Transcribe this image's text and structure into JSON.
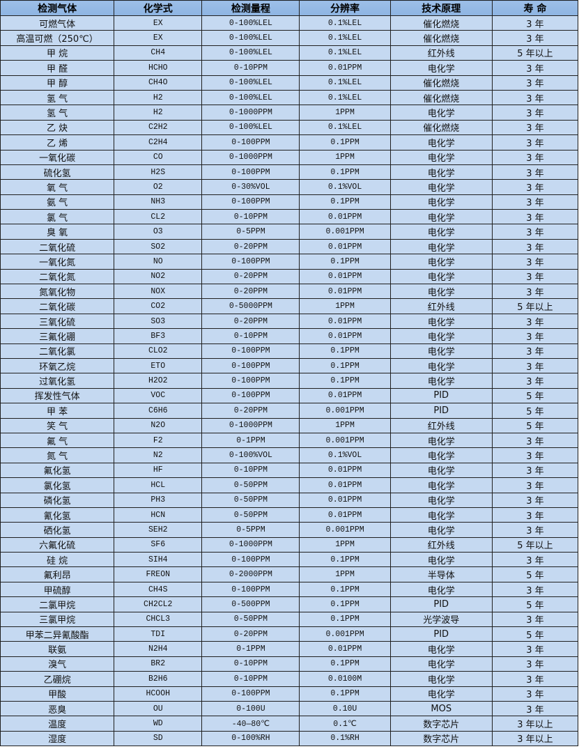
{
  "header": {
    "colors": {
      "header_bg": "#8db4e2",
      "row_bg": "#c5d9f1"
    },
    "columns": [
      "检测气体",
      "化学式",
      "检测量程",
      "分辨率",
      "技术原理",
      "寿  命"
    ]
  },
  "rows": [
    [
      "可燃气体",
      "EX",
      "0-100%LEL",
      "0.1%LEL",
      "催化燃烧",
      "3 年"
    ],
    [
      "高温可燃（250℃）",
      "EX",
      "0-100%LEL",
      "0.1%LEL",
      "催化燃烧",
      "3 年"
    ],
    [
      "甲 烷",
      "CH4",
      "0-100%LEL",
      "0.1%LEL",
      "红外线",
      "5 年以上"
    ],
    [
      "甲 醛",
      "HCHO",
      "0-10PPM",
      "0.01PPM",
      "电化学",
      "3 年"
    ],
    [
      "甲 醇",
      "CH4O",
      "0-100%LEL",
      "0.1%LEL",
      "催化燃烧",
      "3 年"
    ],
    [
      "氢 气",
      "H2",
      "0-100%LEL",
      "0.1%LEL",
      "催化燃烧",
      "3 年"
    ],
    [
      "氢 气",
      "H2",
      "0-1000PPM",
      "1PPM",
      "电化学",
      "3 年"
    ],
    [
      "乙 炔",
      "C2H2",
      "0-100%LEL",
      "0.1%LEL",
      "催化燃烧",
      "3 年"
    ],
    [
      "乙 烯",
      "C2H4",
      "0-100PPM",
      "0.1PPM",
      "电化学",
      "3 年"
    ],
    [
      "一氧化碳",
      "CO",
      "0-1000PPM",
      "1PPM",
      "电化学",
      "3 年"
    ],
    [
      "硫化氢",
      "H2S",
      "0-100PPM",
      "0.1PPM",
      "电化学",
      "3 年"
    ],
    [
      "氧 气",
      "O2",
      "0-30%VOL",
      "0.1%VOL",
      "电化学",
      "3 年"
    ],
    [
      "氨 气",
      "NH3",
      "0-100PPM",
      "0.1PPM",
      "电化学",
      "3 年"
    ],
    [
      "氯 气",
      "CL2",
      "0-10PPM",
      "0.01PPM",
      "电化学",
      "3 年"
    ],
    [
      "臭 氧",
      "O3",
      "0-5PPM",
      "0.001PPM",
      "电化学",
      "3 年"
    ],
    [
      "二氧化硫",
      "SO2",
      "0-20PPM",
      "0.01PPM",
      "电化学",
      "3 年"
    ],
    [
      "一氧化氮",
      "NO",
      "0-100PPM",
      "0.1PPM",
      "电化学",
      "3 年"
    ],
    [
      "二氧化氮",
      "NO2",
      "0-20PPM",
      "0.01PPM",
      "电化学",
      "3 年"
    ],
    [
      "氮氧化物",
      "NOX",
      "0-20PPM",
      "0.01PPM",
      "电化学",
      "3 年"
    ],
    [
      "二氧化碳",
      "CO2",
      "0-5000PPM",
      "1PPM",
      "红外线",
      "5 年以上"
    ],
    [
      "三氧化硫",
      "SO3",
      "0-20PPM",
      "0.01PPM",
      "电化学",
      "3 年"
    ],
    [
      "三氟化硼",
      "BF3",
      "0-10PPM",
      "0.01PPM",
      "电化学",
      "3 年"
    ],
    [
      "二氧化氯",
      "CLO2",
      "0-100PPM",
      "0.1PPM",
      "电化学",
      "3 年"
    ],
    [
      "环氧乙烷",
      "ETO",
      "0-100PPM",
      "0.1PPM",
      "电化学",
      "3 年"
    ],
    [
      "过氧化氢",
      "H2O2",
      "0-100PPM",
      "0.1PPM",
      "电化学",
      "3 年"
    ],
    [
      "挥发性气体",
      "VOC",
      "0-100PPM",
      "0.01PPM",
      "PID",
      "5 年"
    ],
    [
      "甲 苯",
      "C6H6",
      "0-20PPM",
      "0.001PPM",
      "PID",
      "5 年"
    ],
    [
      "笑 气",
      "N2O",
      "0-1000PPM",
      "1PPM",
      "红外线",
      "5 年"
    ],
    [
      "氟 气",
      "F2",
      "0-1PPM",
      "0.001PPM",
      "电化学",
      "3 年"
    ],
    [
      "氮 气",
      "N2",
      "0-100%VOL",
      "0.1%VOL",
      "电化学",
      "3 年"
    ],
    [
      "氟化氢",
      "HF",
      "0-10PPM",
      "0.01PPM",
      "电化学",
      "3 年"
    ],
    [
      "氯化氢",
      "HCL",
      "0-50PPM",
      "0.01PPM",
      "电化学",
      "3 年"
    ],
    [
      "磷化氢",
      "PH3",
      "0-50PPM",
      "0.01PPM",
      "电化学",
      "3 年"
    ],
    [
      "氰化氢",
      "HCN",
      "0-50PPM",
      "0.01PPM",
      "电化学",
      "3 年"
    ],
    [
      "硒化氢",
      "SEH2",
      "0-5PPM",
      "0.001PPM",
      "电化学",
      "3 年"
    ],
    [
      "六氟化硫",
      "SF6",
      "0-1000PPM",
      "1PPM",
      "红外线",
      "5 年以上"
    ],
    [
      "硅 烷",
      "SIH4",
      "0-100PPM",
      "0.1PPM",
      "电化学",
      "3 年"
    ],
    [
      "氟利昂",
      "FREON",
      "0-2000PPM",
      "1PPM",
      "半导体",
      "5 年"
    ],
    [
      "甲硫醇",
      "CH4S",
      "0-100PPM",
      "0.1PPM",
      "电化学",
      "3 年"
    ],
    [
      "二氯甲烷",
      "CH2CL2",
      "0-500PPM",
      "0.1PPM",
      "PID",
      "5 年"
    ],
    [
      "三氯甲烷",
      "CHCL3",
      "0-50PPM",
      "0.1PPM",
      "光学波导",
      "3 年"
    ],
    [
      "甲苯二异氰酸酯",
      "TDI",
      "0-20PPM",
      "0.001PPM",
      "PID",
      "5 年"
    ],
    [
      "联氨",
      "N2H4",
      "0-1PPM",
      "0.01PPM",
      "电化学",
      "3 年"
    ],
    [
      "溴气",
      "BR2",
      "0-10PPM",
      "0.1PPM",
      "电化学",
      "3 年"
    ],
    [
      "乙硼烷",
      "B2H6",
      "0-10PPM",
      "0.0100M",
      "电化学",
      "3 年"
    ],
    [
      "甲酸",
      "HCOOH",
      "0-100PPM",
      "0.1PPM",
      "电化学",
      "3 年"
    ],
    [
      "恶臭",
      "OU",
      "0-100U",
      "0.10U",
      "MOS",
      "3 年"
    ],
    [
      "温度",
      "WD",
      "-40—80℃",
      "0.1℃",
      "数字芯片",
      "3 年以上"
    ],
    [
      "湿度",
      "SD",
      "0-100%RH",
      "0.1%RH",
      "数字芯片",
      "3 年以上"
    ]
  ]
}
